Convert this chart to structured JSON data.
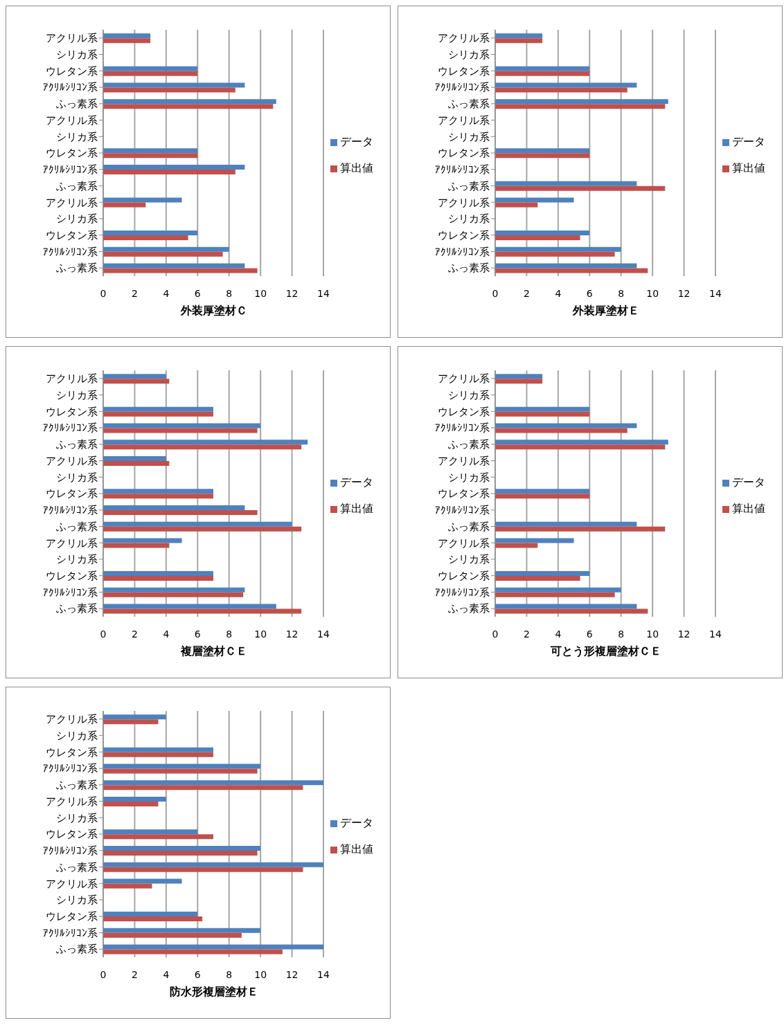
{
  "chart_data": [
    {
      "type": "bar",
      "orientation": "horizontal",
      "xlabel": "外装厚塗材Ｃ",
      "categories": [
        "アクリル系",
        "シリカ系",
        "ウレタン系",
        "ｱｸﾘﾙｼﾘｺﾝ系",
        "ふっ素系",
        "アクリル系",
        "シリカ系",
        "ウレタン系",
        "ｱｸﾘﾙｼﾘｺﾝ系",
        "ふっ素系",
        "アクリル系",
        "シリカ系",
        "ウレタン系",
        "ｱｸﾘﾙｼﾘｺﾝ系",
        "ふっ素系"
      ],
      "xlim": [
        0,
        14
      ],
      "xticks": [
        0,
        2,
        4,
        6,
        8,
        10,
        12,
        14
      ],
      "grid": "x",
      "legend": "right",
      "series": [
        {
          "name": "データ",
          "color": "#4f81bd",
          "values": [
            3,
            null,
            6,
            9,
            11,
            null,
            null,
            6,
            9,
            null,
            5,
            null,
            6,
            8,
            9
          ]
        },
        {
          "name": "算出値",
          "color": "#c0504d",
          "values": [
            3,
            null,
            6,
            8.4,
            10.8,
            null,
            null,
            6,
            8.4,
            null,
            2.7,
            null,
            5.4,
            7.6,
            9.8
          ]
        }
      ]
    },
    {
      "type": "bar",
      "orientation": "horizontal",
      "xlabel": "外装厚塗材Ｅ",
      "categories": [
        "アクリル系",
        "シリカ系",
        "ウレタン系",
        "ｱｸﾘﾙｼﾘｺﾝ系",
        "ふっ素系",
        "アクリル系",
        "シリカ系",
        "ウレタン系",
        "ｱｸﾘﾙｼﾘｺﾝ系",
        "ふっ素系",
        "アクリル系",
        "シリカ系",
        "ウレタン系",
        "ｱｸﾘﾙｼﾘｺﾝ系",
        "ふっ素系"
      ],
      "xlim": [
        0,
        14
      ],
      "xticks": [
        0,
        2,
        4,
        6,
        8,
        10,
        12,
        14
      ],
      "grid": "x",
      "legend": "right",
      "series": [
        {
          "name": "データ",
          "color": "#4f81bd",
          "values": [
            3,
            null,
            6,
            9,
            11,
            null,
            null,
            6,
            null,
            9,
            5,
            null,
            6,
            8,
            9
          ]
        },
        {
          "name": "算出値",
          "color": "#c0504d",
          "values": [
            3,
            null,
            6,
            8.4,
            10.8,
            null,
            null,
            6,
            null,
            10.8,
            2.7,
            null,
            5.4,
            7.6,
            9.7
          ]
        }
      ]
    },
    {
      "type": "bar",
      "orientation": "horizontal",
      "xlabel": "複層塗材ＣＥ",
      "categories": [
        "アクリル系",
        "シリカ系",
        "ウレタン系",
        "ｱｸﾘﾙｼﾘｺﾝ系",
        "ふっ素系",
        "アクリル系",
        "シリカ系",
        "ウレタン系",
        "ｱｸﾘﾙｼﾘｺﾝ系",
        "ふっ素系",
        "アクリル系",
        "シリカ系",
        "ウレタン系",
        "ｱｸﾘﾙｼﾘｺﾝ系",
        "ふっ素系"
      ],
      "xlim": [
        0,
        14
      ],
      "xticks": [
        0,
        2,
        4,
        6,
        8,
        10,
        12,
        14
      ],
      "grid": "x",
      "legend": "right",
      "series": [
        {
          "name": "データ",
          "color": "#4f81bd",
          "values": [
            4,
            null,
            7,
            10,
            13,
            4,
            null,
            7,
            9,
            12,
            5,
            null,
            7,
            9,
            11
          ]
        },
        {
          "name": "算出値",
          "color": "#c0504d",
          "values": [
            4.2,
            null,
            7,
            9.8,
            12.6,
            4.2,
            null,
            7,
            9.8,
            12.6,
            4.2,
            null,
            7,
            8.9,
            12.6
          ]
        }
      ]
    },
    {
      "type": "bar",
      "orientation": "horizontal",
      "xlabel": "可とう形複層塗材ＣＥ",
      "categories": [
        "アクリル系",
        "シリカ系",
        "ウレタン系",
        "ｱｸﾘﾙｼﾘｺﾝ系",
        "ふっ素系",
        "アクリル系",
        "シリカ系",
        "ウレタン系",
        "ｱｸﾘﾙｼﾘｺﾝ系",
        "ふっ素系",
        "アクリル系",
        "シリカ系",
        "ウレタン系",
        "ｱｸﾘﾙｼﾘｺﾝ系",
        "ふっ素系"
      ],
      "xlim": [
        0,
        14
      ],
      "xticks": [
        0,
        2,
        4,
        6,
        8,
        10,
        12,
        14
      ],
      "grid": "x",
      "legend": "right",
      "series": [
        {
          "name": "データ",
          "color": "#4f81bd",
          "values": [
            3,
            null,
            6,
            9,
            11,
            null,
            null,
            6,
            null,
            9,
            5,
            null,
            6,
            8,
            9
          ]
        },
        {
          "name": "算出値",
          "color": "#c0504d",
          "values": [
            3,
            null,
            6,
            8.4,
            10.8,
            null,
            null,
            6,
            null,
            10.8,
            2.7,
            null,
            5.4,
            7.6,
            9.7
          ]
        }
      ]
    },
    {
      "type": "bar",
      "orientation": "horizontal",
      "xlabel": "防水形複層塗材Ｅ",
      "categories": [
        "アクリル系",
        "シリカ系",
        "ウレタン系",
        "ｱｸﾘﾙｼﾘｺﾝ系",
        "ふっ素系",
        "アクリル系",
        "シリカ系",
        "ウレタン系",
        "ｱｸﾘﾙｼﾘｺﾝ系",
        "ふっ素系",
        "アクリル系",
        "シリカ系",
        "ウレタン系",
        "ｱｸﾘﾙｼﾘｺﾝ系",
        "ふっ素系"
      ],
      "xlim": [
        0,
        14
      ],
      "xticks": [
        0,
        2,
        4,
        6,
        8,
        10,
        12,
        14
      ],
      "grid": "x",
      "legend": "right",
      "series": [
        {
          "name": "データ",
          "color": "#4f81bd",
          "values": [
            4,
            null,
            7,
            10,
            14,
            4,
            null,
            6,
            10,
            14,
            5,
            null,
            6,
            10,
            14
          ]
        },
        {
          "name": "算出値",
          "color": "#c0504d",
          "values": [
            3.5,
            null,
            7,
            9.8,
            12.7,
            3.5,
            null,
            7,
            9.8,
            12.7,
            3.1,
            null,
            6.3,
            8.8,
            11.4
          ]
        }
      ]
    }
  ]
}
